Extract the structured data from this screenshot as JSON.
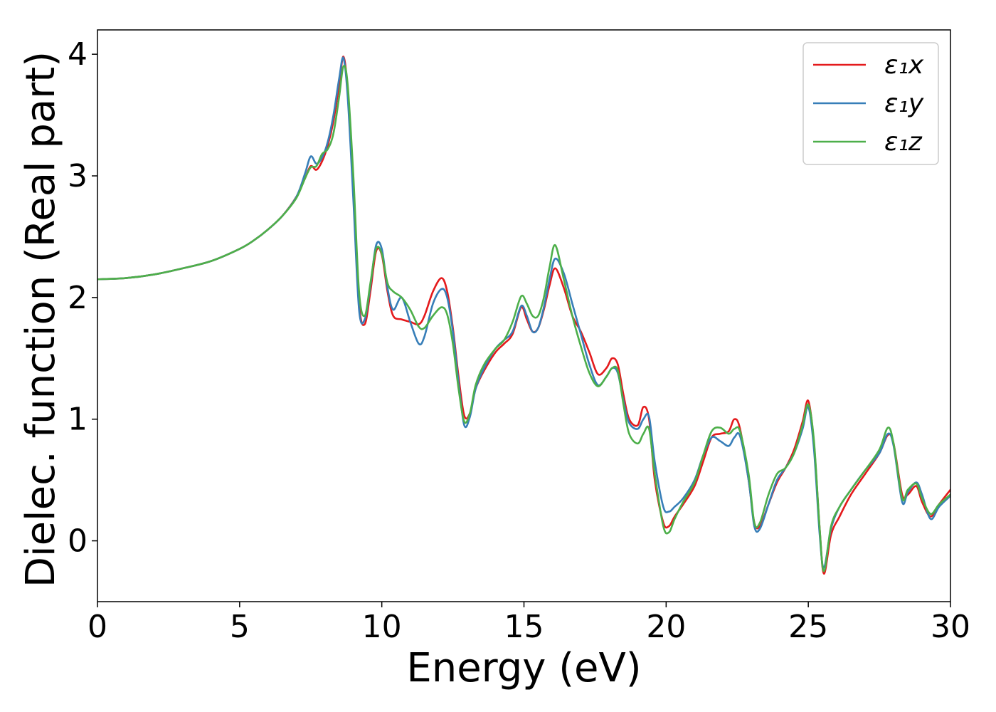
{
  "chart_data": {
    "type": "line",
    "title": "",
    "xlabel": "Energy (eV)",
    "ylabel": "Dielec. function (Real part)",
    "xlim": [
      0,
      30
    ],
    "ylim": [
      -0.5,
      4.2
    ],
    "xticks": [
      0,
      5,
      10,
      15,
      20,
      25,
      30
    ],
    "yticks": [
      0,
      1,
      2,
      3,
      4
    ],
    "grid": false,
    "legend_position": "top-right",
    "series": [
      {
        "name": "ε₁x",
        "color": "#e41a1c",
        "x": [
          0,
          1,
          2,
          3,
          4,
          5,
          5.5,
          6,
          6.5,
          7,
          7.3,
          7.5,
          7.7,
          7.9,
          8.1,
          8.3,
          8.5,
          8.65,
          8.8,
          9.0,
          9.2,
          9.4,
          9.6,
          9.8,
          10.0,
          10.2,
          10.4,
          10.7,
          11.0,
          11.3,
          11.5,
          11.8,
          12.1,
          12.3,
          12.5,
          12.7,
          12.9,
          13.1,
          13.3,
          13.6,
          14.0,
          14.3,
          14.6,
          14.9,
          15.1,
          15.3,
          15.5,
          15.7,
          15.9,
          16.1,
          16.4,
          16.7,
          17.0,
          17.3,
          17.6,
          17.9,
          18.1,
          18.3,
          18.5,
          18.7,
          19.0,
          19.2,
          19.4,
          19.6,
          19.9,
          20.1,
          20.3,
          20.6,
          21.0,
          21.3,
          21.6,
          21.9,
          22.2,
          22.4,
          22.6,
          22.9,
          23.1,
          23.3,
          23.6,
          23.9,
          24.2,
          24.5,
          24.8,
          25.0,
          25.2,
          25.4,
          25.55,
          25.8,
          26.1,
          26.5,
          27.0,
          27.5,
          27.8,
          28.0,
          28.3,
          28.5,
          28.8,
          29.0,
          29.3,
          29.6,
          30.0
        ],
        "y": [
          2.15,
          2.16,
          2.19,
          2.24,
          2.3,
          2.4,
          2.47,
          2.56,
          2.67,
          2.83,
          2.98,
          3.08,
          3.05,
          3.12,
          3.25,
          3.45,
          3.75,
          3.98,
          3.7,
          2.9,
          1.95,
          1.78,
          2.05,
          2.38,
          2.35,
          2.05,
          1.85,
          1.82,
          1.8,
          1.78,
          1.85,
          2.05,
          2.16,
          2.05,
          1.75,
          1.35,
          1.03,
          1.05,
          1.25,
          1.4,
          1.55,
          1.62,
          1.7,
          1.92,
          1.82,
          1.72,
          1.75,
          1.9,
          2.1,
          2.24,
          2.08,
          1.85,
          1.72,
          1.55,
          1.37,
          1.42,
          1.5,
          1.45,
          1.2,
          1.0,
          0.95,
          1.1,
          1.0,
          0.5,
          0.15,
          0.12,
          0.2,
          0.3,
          0.45,
          0.65,
          0.85,
          0.88,
          0.9,
          1.0,
          0.92,
          0.5,
          0.15,
          0.12,
          0.3,
          0.48,
          0.6,
          0.75,
          0.98,
          1.15,
          0.8,
          0.1,
          -0.27,
          0.05,
          0.2,
          0.38,
          0.55,
          0.72,
          0.87,
          0.8,
          0.38,
          0.38,
          0.45,
          0.32,
          0.2,
          0.3,
          0.42
        ]
      },
      {
        "name": "ε₁y",
        "color": "#377eb8",
        "x": [
          0,
          1,
          2,
          3,
          4,
          5,
          5.5,
          6,
          6.5,
          7,
          7.3,
          7.5,
          7.7,
          7.9,
          8.1,
          8.3,
          8.5,
          8.65,
          8.8,
          9.0,
          9.2,
          9.4,
          9.6,
          9.8,
          10.0,
          10.2,
          10.4,
          10.7,
          11.0,
          11.3,
          11.5,
          11.8,
          12.1,
          12.3,
          12.5,
          12.7,
          12.9,
          13.1,
          13.3,
          13.6,
          14.0,
          14.3,
          14.6,
          14.9,
          15.1,
          15.3,
          15.5,
          15.7,
          15.9,
          16.1,
          16.4,
          16.7,
          17.0,
          17.3,
          17.6,
          17.9,
          18.1,
          18.3,
          18.5,
          18.7,
          19.0,
          19.2,
          19.4,
          19.6,
          19.9,
          20.1,
          20.3,
          20.6,
          21.0,
          21.3,
          21.6,
          21.9,
          22.2,
          22.4,
          22.6,
          22.9,
          23.1,
          23.3,
          23.6,
          23.9,
          24.2,
          24.5,
          24.8,
          25.0,
          25.2,
          25.4,
          25.55,
          25.8,
          26.1,
          26.5,
          27.0,
          27.5,
          27.8,
          28.0,
          28.3,
          28.5,
          28.8,
          29.0,
          29.3,
          29.6,
          30.0
        ],
        "y": [
          2.15,
          2.16,
          2.19,
          2.24,
          2.3,
          2.4,
          2.47,
          2.56,
          2.67,
          2.83,
          3.02,
          3.16,
          3.1,
          3.15,
          3.28,
          3.5,
          3.8,
          3.97,
          3.65,
          2.8,
          1.9,
          1.82,
          2.1,
          2.43,
          2.4,
          2.08,
          1.9,
          2.0,
          1.8,
          1.62,
          1.68,
          1.95,
          2.07,
          2.0,
          1.72,
          1.3,
          0.95,
          1.02,
          1.25,
          1.42,
          1.58,
          1.65,
          1.72,
          1.93,
          1.85,
          1.72,
          1.75,
          1.92,
          2.15,
          2.32,
          2.2,
          1.95,
          1.7,
          1.45,
          1.28,
          1.35,
          1.42,
          1.38,
          1.15,
          0.97,
          0.92,
          1.0,
          1.02,
          0.65,
          0.28,
          0.24,
          0.28,
          0.35,
          0.5,
          0.7,
          0.85,
          0.82,
          0.78,
          0.85,
          0.86,
          0.5,
          0.12,
          0.1,
          0.3,
          0.5,
          0.6,
          0.72,
          0.92,
          1.1,
          0.75,
          0.05,
          -0.22,
          0.1,
          0.28,
          0.42,
          0.58,
          0.72,
          0.88,
          0.78,
          0.32,
          0.4,
          0.48,
          0.38,
          0.18,
          0.28,
          0.37
        ]
      },
      {
        "name": "ε₁z",
        "color": "#4daf4a",
        "x": [
          0,
          1,
          2,
          3,
          4,
          5,
          5.5,
          6,
          6.5,
          7,
          7.3,
          7.5,
          7.7,
          7.9,
          8.1,
          8.3,
          8.5,
          8.65,
          8.8,
          9.0,
          9.2,
          9.4,
          9.6,
          9.8,
          10.0,
          10.2,
          10.4,
          10.7,
          11.0,
          11.3,
          11.5,
          11.8,
          12.1,
          12.3,
          12.5,
          12.7,
          12.9,
          13.1,
          13.3,
          13.6,
          14.0,
          14.3,
          14.6,
          14.9,
          15.1,
          15.3,
          15.5,
          15.7,
          15.9,
          16.1,
          16.4,
          16.7,
          17.0,
          17.3,
          17.6,
          17.9,
          18.1,
          18.3,
          18.5,
          18.7,
          19.0,
          19.2,
          19.4,
          19.6,
          19.9,
          20.1,
          20.3,
          20.6,
          21.0,
          21.3,
          21.6,
          21.9,
          22.2,
          22.4,
          22.6,
          22.9,
          23.1,
          23.3,
          23.6,
          23.9,
          24.2,
          24.5,
          24.8,
          25.0,
          25.2,
          25.4,
          25.55,
          25.8,
          26.1,
          26.5,
          27.0,
          27.5,
          27.8,
          28.0,
          28.3,
          28.5,
          28.8,
          29.0,
          29.3,
          29.6,
          30.0
        ],
        "y": [
          2.15,
          2.16,
          2.19,
          2.24,
          2.3,
          2.4,
          2.47,
          2.56,
          2.67,
          2.82,
          2.98,
          3.07,
          3.08,
          3.18,
          3.22,
          3.35,
          3.65,
          3.9,
          3.75,
          3.0,
          2.05,
          1.85,
          2.12,
          2.4,
          2.36,
          2.12,
          2.05,
          2.0,
          1.9,
          1.76,
          1.75,
          1.85,
          1.92,
          1.86,
          1.62,
          1.25,
          0.98,
          1.05,
          1.28,
          1.45,
          1.58,
          1.65,
          1.8,
          2.01,
          1.95,
          1.85,
          1.85,
          2.0,
          2.25,
          2.43,
          2.15,
          1.85,
          1.6,
          1.38,
          1.27,
          1.35,
          1.42,
          1.4,
          1.12,
          0.88,
          0.8,
          0.88,
          0.92,
          0.55,
          0.12,
          0.07,
          0.18,
          0.32,
          0.48,
          0.7,
          0.9,
          0.93,
          0.88,
          0.92,
          0.9,
          0.55,
          0.15,
          0.15,
          0.38,
          0.55,
          0.6,
          0.72,
          0.95,
          1.12,
          0.82,
          0.1,
          -0.25,
          0.12,
          0.28,
          0.42,
          0.58,
          0.75,
          0.93,
          0.8,
          0.35,
          0.42,
          0.47,
          0.35,
          0.22,
          0.3,
          0.38
        ]
      }
    ]
  }
}
